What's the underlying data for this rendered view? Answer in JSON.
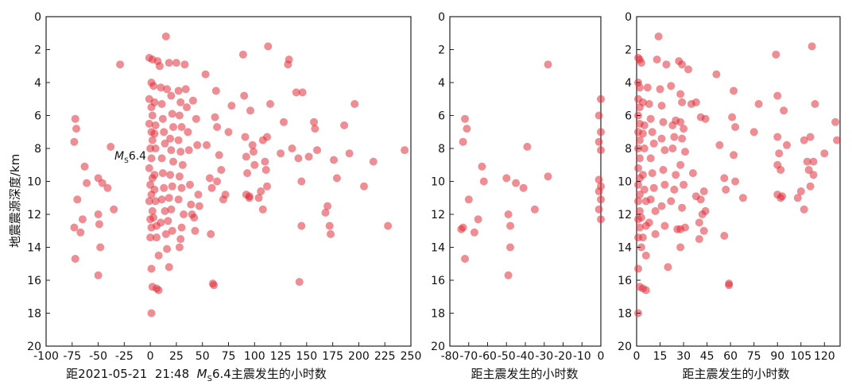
{
  "chart_data": [
    {
      "type": "scatter",
      "xlabel": "距2021-05-21  21:48  MS6.4主震发生的小时数",
      "xlabel_parts": {
        "prefix": "距2021-05-21  21:48  ",
        "M": "M",
        "sub": "S",
        "suffix": "6.4主震发生的小时数"
      },
      "ylabel": "地震震源深度/km",
      "xlim": [
        -100,
        250
      ],
      "ylim": [
        0,
        20
      ],
      "y_inverted": true,
      "xticks": [
        -100,
        -75,
        -50,
        -25,
        0,
        25,
        50,
        75,
        100,
        125,
        150,
        175,
        200,
        225,
        250
      ],
      "yticks": [
        0,
        2,
        4,
        6,
        8,
        10,
        12,
        14,
        16,
        18,
        20
      ],
      "annotation": {
        "M": "M",
        "sub": "S",
        "text": "6.4",
        "x": 0,
        "y": 8.4
      },
      "points": [
        [
          -73,
          12.8
        ],
        [
          -72,
          6.2
        ],
        [
          -71,
          6.8
        ],
        [
          -73,
          7.6
        ],
        [
          -72,
          14.7
        ],
        [
          -70,
          11.1
        ],
        [
          -67,
          13.1
        ],
        [
          -65,
          12.3
        ],
        [
          -63,
          9.1
        ],
        [
          -61,
          10.1
        ],
        [
          -50,
          15.7
        ],
        [
          -48,
          14.0
        ],
        [
          -50,
          12.0
        ],
        [
          -49,
          12.6
        ],
        [
          -50,
          9.8
        ],
        [
          -46,
          10.1
        ],
        [
          -41,
          10.4
        ],
        [
          -38,
          7.9
        ],
        [
          -35,
          11.7
        ],
        [
          -29,
          2.9
        ],
        [
          -1,
          2.5
        ],
        [
          2,
          2.6
        ],
        [
          1,
          4.0
        ],
        [
          3,
          4.2
        ],
        [
          -1,
          5.0
        ],
        [
          1,
          5.5
        ],
        [
          2,
          6.0
        ],
        [
          -1,
          6.5
        ],
        [
          1,
          7.0
        ],
        [
          2,
          7.5
        ],
        [
          0,
          8.0
        ],
        [
          1,
          8.6
        ],
        [
          -1,
          9.2
        ],
        [
          2,
          9.8
        ],
        [
          0,
          10.2
        ],
        [
          1,
          10.8
        ],
        [
          -1,
          11.2
        ],
        [
          2,
          11.8
        ],
        [
          0,
          12.3
        ],
        [
          1,
          12.8
        ],
        [
          0,
          13.4
        ],
        [
          1,
          15.3
        ],
        [
          2,
          16.4
        ],
        [
          6,
          16.5
        ],
        [
          8,
          16.6
        ],
        [
          1,
          18.0
        ],
        [
          8,
          14.5
        ],
        [
          6,
          13.4
        ],
        [
          4,
          5.2
        ],
        [
          4,
          7.1
        ],
        [
          5,
          8.0
        ],
        [
          4,
          9.6
        ],
        [
          4,
          10.5
        ],
        [
          5,
          11.2
        ],
        [
          3,
          12.2
        ],
        [
          5,
          6.6
        ],
        [
          6,
          12.7
        ],
        [
          7,
          2.7
        ],
        [
          9,
          3.0
        ],
        [
          10,
          4.3
        ],
        [
          11,
          5.3
        ],
        [
          12,
          6.2
        ],
        [
          13,
          7.0
        ],
        [
          14,
          7.7
        ],
        [
          11,
          8.6
        ],
        [
          12,
          9.5
        ],
        [
          13,
          10.4
        ],
        [
          11,
          11.1
        ],
        [
          14,
          11.8
        ],
        [
          10,
          12.5
        ],
        [
          15,
          13.2
        ],
        [
          16,
          14.1
        ],
        [
          15,
          1.2
        ],
        [
          18,
          2.8
        ],
        [
          16,
          4.4
        ],
        [
          20,
          4.8
        ],
        [
          21,
          5.9
        ],
        [
          22,
          6.7
        ],
        [
          19,
          7.4
        ],
        [
          20,
          8.1
        ],
        [
          22,
          8.8
        ],
        [
          19,
          9.6
        ],
        [
          21,
          10.3
        ],
        [
          18,
          11.0
        ],
        [
          20,
          11.7
        ],
        [
          17,
          12.4
        ],
        [
          21,
          13.0
        ],
        [
          18,
          15.2
        ],
        [
          25,
          2.8
        ],
        [
          27,
          4.5
        ],
        [
          29,
          5.2
        ],
        [
          28,
          6.0
        ],
        [
          30,
          6.7
        ],
        [
          27,
          7.5
        ],
        [
          29,
          8.2
        ],
        [
          31,
          9.0
        ],
        [
          28,
          9.7
        ],
        [
          30,
          10.4
        ],
        [
          27,
          11.1
        ],
        [
          32,
          12.0
        ],
        [
          30,
          12.8
        ],
        [
          29,
          13.5
        ],
        [
          28,
          14.0
        ],
        [
          33,
          2.9
        ],
        [
          34,
          4.4
        ],
        [
          35,
          5.5
        ],
        [
          36,
          7.0
        ],
        [
          37,
          8.1
        ],
        [
          38,
          10.2
        ],
        [
          39,
          11.4
        ],
        [
          40,
          12.0
        ],
        [
          42,
          12.2
        ],
        [
          41,
          5.1
        ],
        [
          44,
          6.2
        ],
        [
          45,
          7.8
        ],
        [
          46,
          10.8
        ],
        [
          43,
          13.0
        ],
        [
          47,
          11.5
        ],
        [
          53,
          3.5
        ],
        [
          54,
          7.8
        ],
        [
          57,
          9.8
        ],
        [
          59,
          10.4
        ],
        [
          58,
          13.2
        ],
        [
          60,
          16.2
        ],
        [
          61,
          16.3
        ],
        [
          63,
          4.5
        ],
        [
          62,
          6.1
        ],
        [
          64,
          6.7
        ],
        [
          64,
          10.0
        ],
        [
          66,
          8.4
        ],
        [
          68,
          9.3
        ],
        [
          70,
          11.1
        ],
        [
          72,
          10.8
        ],
        [
          75,
          7.0
        ],
        [
          78,
          5.4
        ],
        [
          89,
          2.3
        ],
        [
          90,
          4.8
        ],
        [
          91,
          7.3
        ],
        [
          92,
          8.5
        ],
        [
          93,
          9.5
        ],
        [
          92,
          10.8
        ],
        [
          95,
          10.9
        ],
        [
          96,
          5.7
        ],
        [
          95,
          11.0
        ],
        [
          98,
          7.8
        ],
        [
          99,
          8.2
        ],
        [
          100,
          9.0
        ],
        [
          104,
          11.0
        ],
        [
          106,
          10.6
        ],
        [
          108,
          11.7
        ],
        [
          108,
          7.5
        ],
        [
          110,
          8.8
        ],
        [
          111,
          9.3
        ],
        [
          112,
          7.3
        ],
        [
          113,
          1.8
        ],
        [
          115,
          5.3
        ],
        [
          112,
          10.3
        ],
        [
          125,
          8.3
        ],
        [
          128,
          6.4
        ],
        [
          132,
          2.9
        ],
        [
          133,
          2.6
        ],
        [
          136,
          8.0
        ],
        [
          140,
          4.6
        ],
        [
          142,
          8.6
        ],
        [
          145,
          10.0
        ],
        [
          145,
          12.7
        ],
        [
          146,
          4.6
        ],
        [
          152,
          8.5
        ],
        [
          157,
          6.4
        ],
        [
          158,
          6.8
        ],
        [
          160,
          8.1
        ],
        [
          168,
          11.9
        ],
        [
          170,
          11.5
        ],
        [
          172,
          12.7
        ],
        [
          173,
          13.2
        ],
        [
          176,
          8.7
        ],
        [
          179,
          9.8
        ],
        [
          186,
          6.6
        ],
        [
          191,
          8.3
        ],
        [
          196,
          5.3
        ],
        [
          205,
          10.3
        ],
        [
          214,
          8.8
        ],
        [
          228,
          12.7
        ],
        [
          244,
          8.1
        ],
        [
          143,
          16.1
        ]
      ]
    },
    {
      "type": "scatter",
      "xlabel": "距主震发生的小时数",
      "xlim": [
        -80,
        0
      ],
      "ylim": [
        0,
        20
      ],
      "y_inverted": true,
      "xticks": [
        -80,
        -70,
        -60,
        -50,
        -40,
        -30,
        -20,
        -10,
        0
      ],
      "yticks": [
        0,
        2,
        4,
        6,
        8,
        10,
        12,
        14,
        16,
        18,
        20
      ],
      "points": [
        [
          -74,
          12.9
        ],
        [
          -73,
          12.8
        ],
        [
          -72,
          6.2
        ],
        [
          -71,
          6.8
        ],
        [
          -73,
          7.6
        ],
        [
          -72,
          14.7
        ],
        [
          -70,
          11.1
        ],
        [
          -67,
          13.1
        ],
        [
          -65,
          12.3
        ],
        [
          -63,
          9.1
        ],
        [
          -62,
          10.0
        ],
        [
          -49,
          15.7
        ],
        [
          -48,
          14.0
        ],
        [
          -49,
          12.0
        ],
        [
          -48,
          12.7
        ],
        [
          -50,
          9.8
        ],
        [
          -45,
          10.1
        ],
        [
          -41,
          10.4
        ],
        [
          -39,
          7.9
        ],
        [
          -35,
          11.7
        ],
        [
          -28,
          9.7
        ],
        [
          -28,
          2.9
        ],
        [
          0,
          5.0
        ],
        [
          -1,
          6.0
        ],
        [
          0,
          7.0
        ],
        [
          -1,
          7.6
        ],
        [
          0,
          8.1
        ],
        [
          -1,
          9.9
        ],
        [
          0,
          10.3
        ],
        [
          -1,
          10.6
        ],
        [
          0,
          11.1
        ],
        [
          -1,
          11.7
        ],
        [
          0,
          12.3
        ]
      ]
    },
    {
      "type": "scatter",
      "xlabel": "距主震发生的小时数",
      "xlim": [
        0,
        130
      ],
      "ylim": [
        0,
        20
      ],
      "y_inverted": true,
      "xticks": [
        0,
        15,
        30,
        45,
        60,
        75,
        90,
        105,
        120
      ],
      "yticks": [
        0,
        2,
        4,
        6,
        8,
        10,
        12,
        14,
        16,
        18,
        20
      ],
      "points": [
        [
          1,
          2.5
        ],
        [
          2,
          2.6
        ],
        [
          3,
          2.8
        ],
        [
          1,
          4.0
        ],
        [
          2,
          4.3
        ],
        [
          1,
          5.0
        ],
        [
          2,
          5.5
        ],
        [
          1,
          6.0
        ],
        [
          2,
          6.5
        ],
        [
          1,
          7.0
        ],
        [
          2,
          7.5
        ],
        [
          1,
          8.0
        ],
        [
          2,
          8.6
        ],
        [
          1,
          9.2
        ],
        [
          2,
          9.8
        ],
        [
          1,
          10.2
        ],
        [
          2,
          10.8
        ],
        [
          1,
          11.2
        ],
        [
          2,
          11.8
        ],
        [
          1,
          12.3
        ],
        [
          2,
          12.8
        ],
        [
          1,
          13.4
        ],
        [
          1,
          15.3
        ],
        [
          2,
          16.4
        ],
        [
          4,
          16.5
        ],
        [
          6,
          16.6
        ],
        [
          1,
          18.0
        ],
        [
          6,
          14.5
        ],
        [
          4,
          13.4
        ],
        [
          3,
          14.0
        ],
        [
          4,
          5.2
        ],
        [
          4,
          7.1
        ],
        [
          5,
          8.0
        ],
        [
          4,
          9.6
        ],
        [
          5,
          10.5
        ],
        [
          6,
          11.2
        ],
        [
          3,
          12.2
        ],
        [
          5,
          6.6
        ],
        [
          6,
          12.7
        ],
        [
          7,
          4.3
        ],
        [
          8,
          5.3
        ],
        [
          9,
          6.2
        ],
        [
          10,
          7.0
        ],
        [
          11,
          7.7
        ],
        [
          9,
          8.6
        ],
        [
          10,
          9.5
        ],
        [
          11,
          10.4
        ],
        [
          9,
          11.1
        ],
        [
          12,
          11.8
        ],
        [
          8,
          12.5
        ],
        [
          12,
          13.2
        ],
        [
          14,
          1.2
        ],
        [
          13,
          2.6
        ],
        [
          15,
          4.4
        ],
        [
          16,
          5.4
        ],
        [
          17,
          6.4
        ],
        [
          16,
          7.4
        ],
        [
          18,
          8.1
        ],
        [
          17,
          9.3
        ],
        [
          18,
          10.2
        ],
        [
          16,
          11.5
        ],
        [
          18,
          12.7
        ],
        [
          20,
          15.2
        ],
        [
          19,
          2.9
        ],
        [
          22,
          4.2
        ],
        [
          23,
          6.6
        ],
        [
          24,
          7.3
        ],
        [
          23,
          8.0
        ],
        [
          25,
          9.6
        ],
        [
          24,
          10.5
        ],
        [
          22,
          11.2
        ],
        [
          26,
          12.9
        ],
        [
          28,
          12.9
        ],
        [
          25,
          6.3
        ],
        [
          27,
          2.7
        ],
        [
          29,
          2.9
        ],
        [
          28,
          4.7
        ],
        [
          29,
          5.2
        ],
        [
          28,
          6.4
        ],
        [
          30,
          6.8
        ],
        [
          29,
          7.4
        ],
        [
          31,
          8.2
        ],
        [
          28,
          9.0
        ],
        [
          30,
          10.2
        ],
        [
          29,
          11.6
        ],
        [
          31,
          12.8
        ],
        [
          28,
          14.0
        ],
        [
          33,
          3.2
        ],
        [
          35,
          5.3
        ],
        [
          38,
          5.2
        ],
        [
          36,
          9.5
        ],
        [
          38,
          10.9
        ],
        [
          41,
          11.1
        ],
        [
          42,
          12.0
        ],
        [
          40,
          12.5
        ],
        [
          43,
          10.6
        ],
        [
          43,
          13.0
        ],
        [
          44,
          11.8
        ],
        [
          40,
          13.5
        ],
        [
          41,
          6.1
        ],
        [
          44,
          6.2
        ],
        [
          51,
          3.5
        ],
        [
          53,
          7.8
        ],
        [
          56,
          9.8
        ],
        [
          57,
          10.5
        ],
        [
          56,
          13.3
        ],
        [
          59,
          16.2
        ],
        [
          59,
          16.3
        ],
        [
          62,
          4.5
        ],
        [
          61,
          6.1
        ],
        [
          63,
          6.7
        ],
        [
          63,
          10.0
        ],
        [
          62,
          8.4
        ],
        [
          68,
          11.0
        ],
        [
          75,
          7.0
        ],
        [
          78,
          5.3
        ],
        [
          89,
          2.3
        ],
        [
          90,
          4.8
        ],
        [
          90,
          7.3
        ],
        [
          91,
          8.3
        ],
        [
          90,
          9.0
        ],
        [
          92,
          9.3
        ],
        [
          90,
          10.8
        ],
        [
          93,
          10.9
        ],
        [
          94,
          5.7
        ],
        [
          92,
          11.0
        ],
        [
          96,
          7.8
        ],
        [
          103,
          11.0
        ],
        [
          105,
          10.6
        ],
        [
          107,
          11.7
        ],
        [
          107,
          7.5
        ],
        [
          109,
          8.8
        ],
        [
          110,
          9.3
        ],
        [
          111,
          7.3
        ],
        [
          112,
          1.8
        ],
        [
          114,
          5.3
        ],
        [
          111,
          10.3
        ],
        [
          113,
          8.8
        ],
        [
          113,
          9.6
        ],
        [
          120,
          8.3
        ],
        [
          127,
          6.4
        ],
        [
          128,
          7.5
        ]
      ]
    }
  ]
}
